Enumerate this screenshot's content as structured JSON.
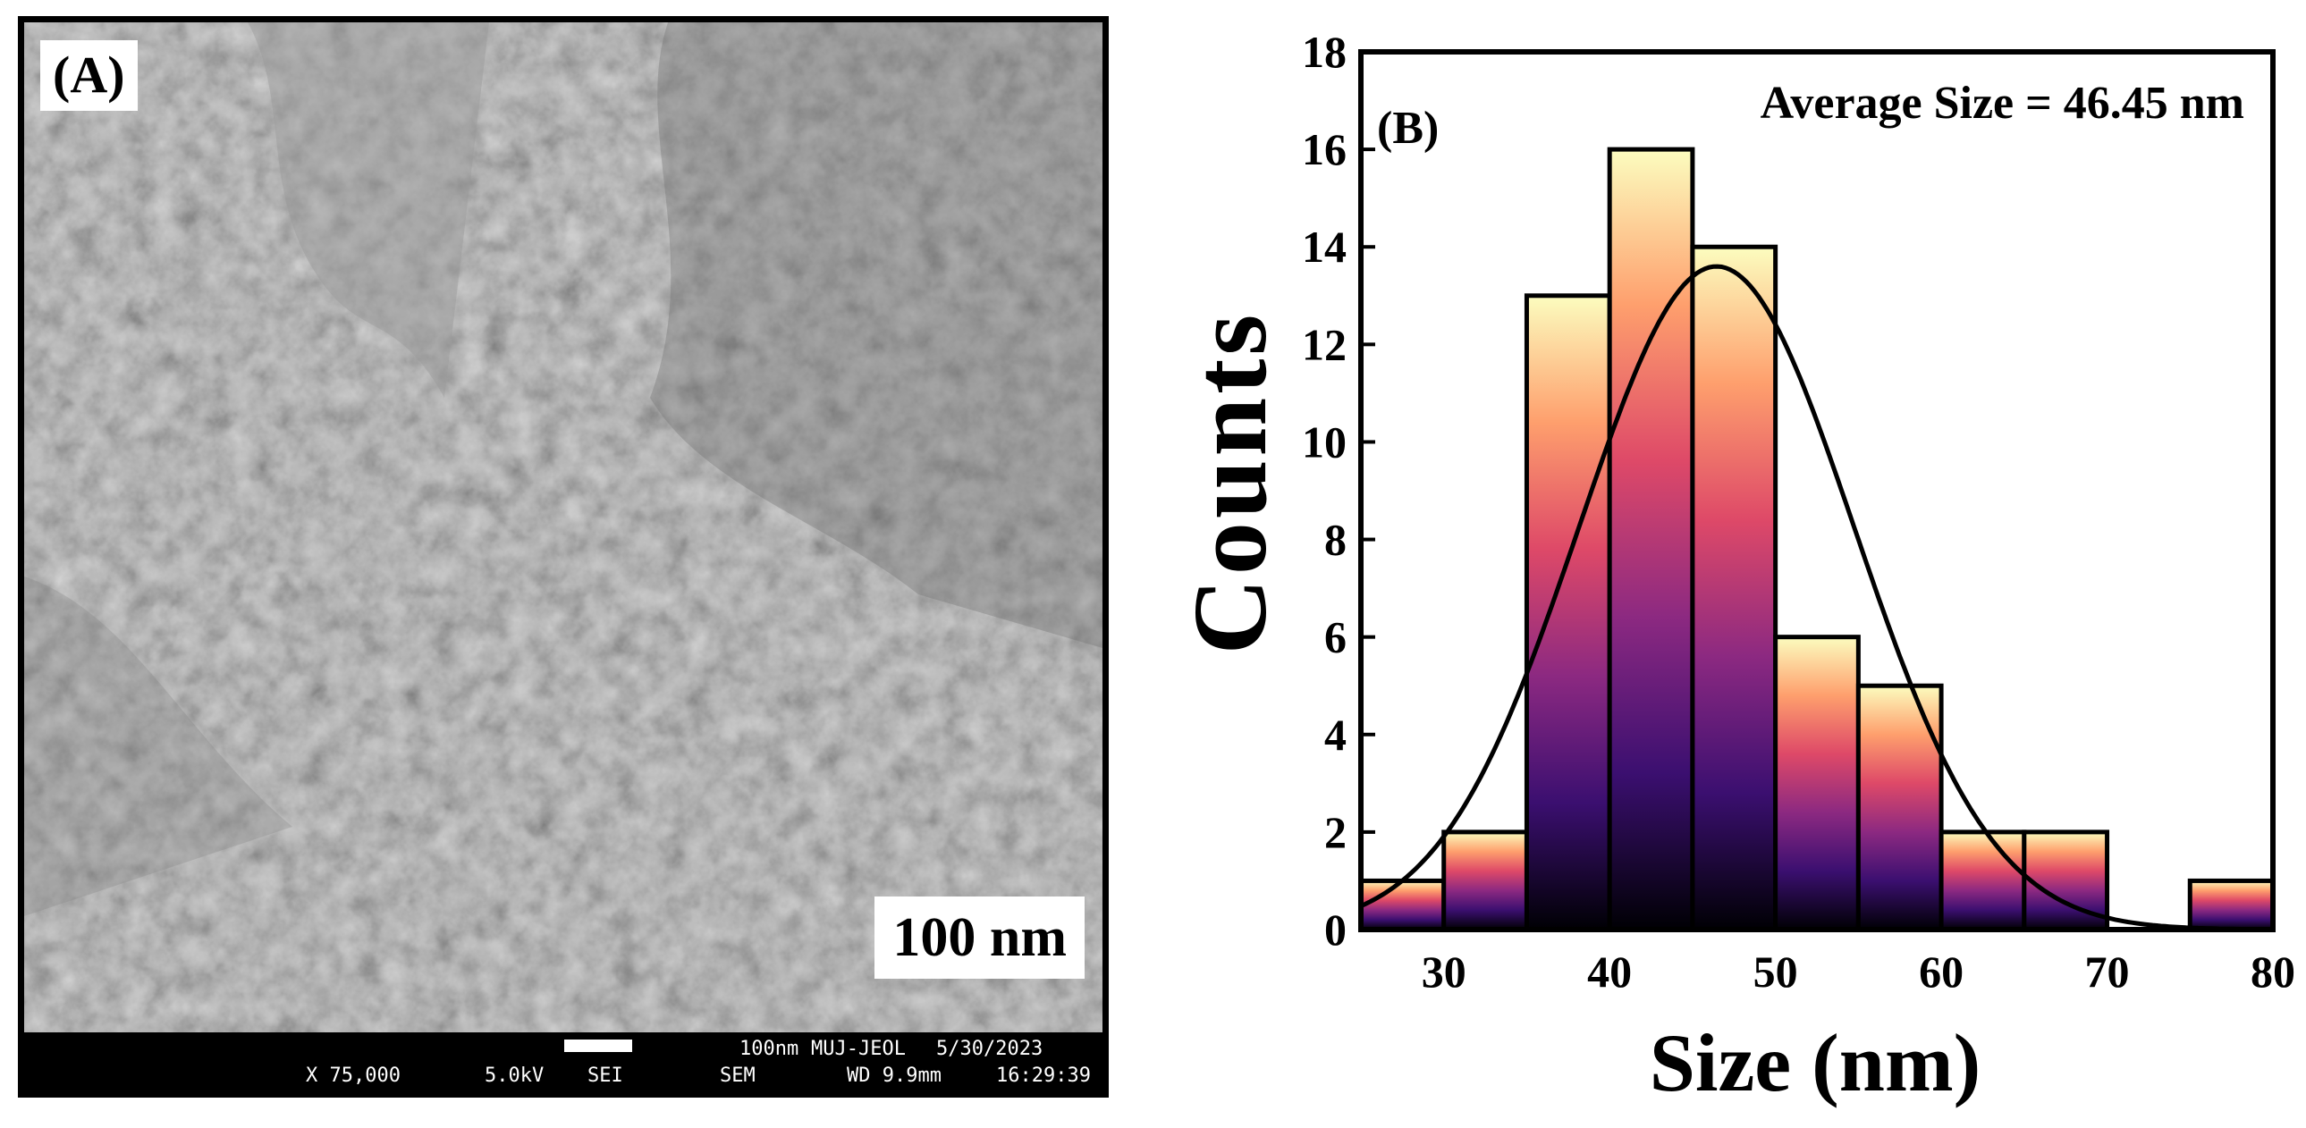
{
  "panel_a": {
    "label": "(A)",
    "scale_label": "100 nm",
    "info_bar": {
      "magnification": "X 75,000",
      "voltage": "5.0kV",
      "detector": "SEI",
      "mode": "SEM",
      "scale": "100nm",
      "instrument": "MUJ-JEOL",
      "date": "5/30/2023",
      "working_distance": "WD 9.9mm",
      "time": "16:29:39"
    }
  },
  "chart_data": {
    "type": "bar",
    "panel_label": "(B)",
    "annotation": "Average Size = 46.45 nm",
    "xlabel": "Size (nm)",
    "ylabel": "Counts",
    "xlim": [
      25,
      80
    ],
    "ylim": [
      0,
      18
    ],
    "xticks": [
      30,
      40,
      50,
      60,
      70,
      80
    ],
    "yticks": [
      0,
      2,
      4,
      6,
      8,
      10,
      12,
      14,
      16,
      18
    ],
    "bin_width": 5,
    "bins": [
      {
        "start": 25,
        "end": 30,
        "count": 1
      },
      {
        "start": 30,
        "end": 35,
        "count": 2
      },
      {
        "start": 35,
        "end": 40,
        "count": 13
      },
      {
        "start": 40,
        "end": 45,
        "count": 16
      },
      {
        "start": 45,
        "end": 50,
        "count": 14
      },
      {
        "start": 50,
        "end": 55,
        "count": 6
      },
      {
        "start": 55,
        "end": 60,
        "count": 5
      },
      {
        "start": 60,
        "end": 65,
        "count": 2
      },
      {
        "start": 65,
        "end": 70,
        "count": 2
      },
      {
        "start": 70,
        "end": 75,
        "count": 0
      },
      {
        "start": 75,
        "end": 80,
        "count": 1
      }
    ],
    "fit": {
      "type": "gaussian",
      "mean": 46.45,
      "sigma": 8.3,
      "amplitude": 13.6
    },
    "colormap": [
      "#000004",
      "#3b0f70",
      "#8c2981",
      "#de4968",
      "#fe9f6d",
      "#fcfdbf"
    ]
  }
}
